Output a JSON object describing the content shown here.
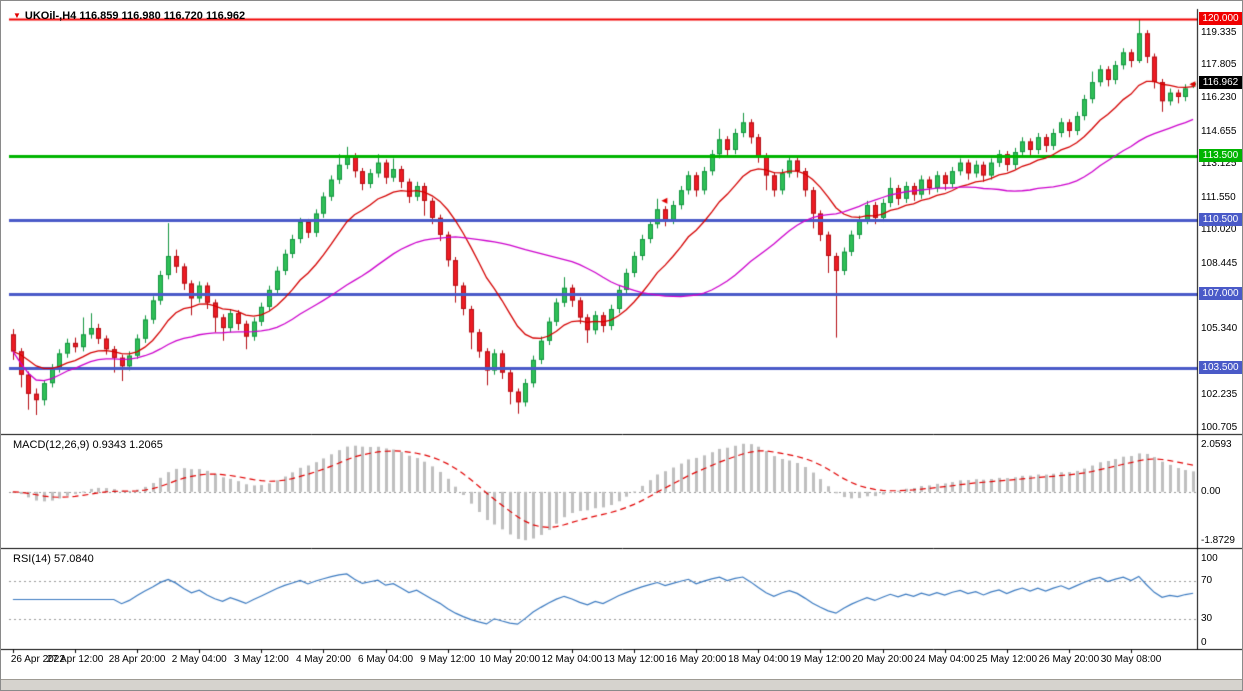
{
  "chart_data": {
    "type": "candlestick",
    "symbol": "UKOil-",
    "timeframe": "H4",
    "title": "UKOil-,H4 116.859 116.980 116.720 116.962",
    "ohlc_display": {
      "open": "116.859",
      "high": "116.980",
      "low": "116.720",
      "close": "116.962"
    },
    "current_price": {
      "label": "116.962",
      "value": 116.962,
      "badge_color": "#000000"
    },
    "price_range": [
      100.45,
      120.45
    ],
    "price_axis_labels": [
      "119.335",
      "117.805",
      "116.230",
      "114.655",
      "113.125",
      "111.550",
      "110.020",
      "108.445",
      "105.340",
      "102.235",
      "100.705"
    ],
    "levels": [
      {
        "label": "120.000",
        "value": 120.0,
        "color": "#f00000",
        "width": 2
      },
      {
        "label": "113.500",
        "value": 113.5,
        "color": "#00b400",
        "width": 3
      },
      {
        "label": "110.500",
        "value": 110.5,
        "color": "#4a5ac8",
        "width": 3
      },
      {
        "label": "107.000",
        "value": 107.0,
        "color": "#4a5ac8",
        "width": 3
      },
      {
        "label": "103.500",
        "value": 103.5,
        "color": "#4a5ac8",
        "width": 3
      }
    ],
    "moving_averages": [
      {
        "name": "ma-fast",
        "method": "ema",
        "period": 13,
        "color": "#d40000"
      },
      {
        "name": "ma-slow",
        "method": "sma",
        "period": 34,
        "color": "#cc00cc"
      }
    ],
    "arrows": [
      {
        "index": 83,
        "price": 111.4
      },
      {
        "index": 151,
        "price": 116.9
      }
    ],
    "arrow_color": "#e00000",
    "colors": {
      "bull_fill": "#2fbf57",
      "bull_border": "#149641",
      "bear_fill": "#ed1c24",
      "bear_border": "#b40e14",
      "background": "#ffffff",
      "separator": "#000000"
    },
    "time_labels": [
      "26 Apr 2022",
      "27 Apr 12:00",
      "28 Apr 20:00",
      "2 May 04:00",
      "3 May 12:00",
      "4 May 20:00",
      "6 May 04:00",
      "9 May 12:00",
      "10 May 20:00",
      "12 May 04:00",
      "13 May 12:00",
      "16 May 20:00",
      "18 May 04:00",
      "19 May 12:00",
      "20 May 20:00",
      "24 May 04:00",
      "25 May 12:00",
      "26 May 20:00",
      "30 May 08:00"
    ],
    "indicators": [
      {
        "id": "macd",
        "name": "MACD",
        "params": [
          12,
          26,
          9
        ],
        "label": "MACD(12,26,9) 0.9343 1.2065",
        "display_values": [
          "0.9343",
          "1.2065"
        ],
        "axis_labels": [
          {
            "text": "2.0593",
            "pos": "top"
          },
          {
            "text": "0.00",
            "pos": "zero"
          },
          {
            "text": "-1.8729",
            "pos": "bottom"
          }
        ],
        "colors": {
          "histogram": "#bfbfbf",
          "signal": "#e00000"
        }
      },
      {
        "id": "rsi",
        "name": "RSI",
        "period": 14,
        "label": "RSI(14) 57.0840",
        "display_value": "57.0840",
        "axis_labels": [
          {
            "text": "100",
            "value": 100
          },
          {
            "text": "70",
            "value": 70
          },
          {
            "text": "30",
            "value": 30
          },
          {
            "text": "0",
            "value": 0
          }
        ],
        "levels": [
          70,
          30
        ],
        "colors": {
          "line": "#3b7ac0"
        }
      }
    ],
    "candles": [
      [
        105.1,
        105.35,
        103.9,
        104.3
      ],
      [
        104.3,
        104.45,
        102.6,
        103.2
      ],
      [
        103.2,
        103.35,
        101.55,
        102.3
      ],
      [
        102.3,
        102.55,
        101.3,
        102.0
      ],
      [
        102.0,
        102.95,
        101.75,
        102.8
      ],
      [
        102.8,
        103.7,
        102.6,
        103.5
      ],
      [
        103.5,
        104.4,
        103.3,
        104.2
      ],
      [
        104.2,
        104.9,
        104.0,
        104.7
      ],
      [
        104.7,
        104.95,
        104.25,
        104.5
      ],
      [
        104.5,
        105.9,
        104.3,
        105.1
      ],
      [
        105.1,
        106.1,
        104.9,
        105.4
      ],
      [
        105.4,
        105.6,
        104.65,
        104.9
      ],
      [
        104.9,
        105.05,
        104.15,
        104.4
      ],
      [
        104.4,
        104.55,
        103.3,
        104.0
      ],
      [
        104.0,
        104.15,
        102.9,
        103.6
      ],
      [
        103.6,
        104.3,
        103.4,
        104.1
      ],
      [
        104.1,
        105.1,
        103.95,
        104.9
      ],
      [
        104.9,
        106.0,
        104.7,
        105.8
      ],
      [
        105.8,
        106.9,
        105.6,
        106.7
      ],
      [
        106.7,
        108.1,
        106.5,
        107.9
      ],
      [
        107.9,
        110.35,
        107.7,
        108.8
      ],
      [
        108.8,
        109.1,
        108.0,
        108.3
      ],
      [
        108.3,
        108.45,
        107.2,
        107.5
      ],
      [
        107.5,
        107.65,
        106.0,
        106.8
      ],
      [
        106.8,
        107.6,
        106.6,
        107.4
      ],
      [
        107.4,
        107.55,
        106.3,
        106.6
      ],
      [
        106.6,
        106.75,
        105.2,
        105.9
      ],
      [
        105.9,
        106.05,
        104.8,
        105.4
      ],
      [
        105.4,
        106.3,
        105.2,
        106.1
      ],
      [
        106.1,
        106.25,
        105.3,
        105.6
      ],
      [
        105.6,
        105.75,
        104.4,
        105.0
      ],
      [
        105.0,
        105.9,
        104.8,
        105.7
      ],
      [
        105.7,
        106.6,
        105.5,
        106.4
      ],
      [
        106.4,
        107.4,
        106.2,
        107.2
      ],
      [
        107.2,
        108.3,
        107.0,
        108.1
      ],
      [
        108.1,
        109.1,
        107.9,
        108.9
      ],
      [
        108.9,
        109.8,
        108.7,
        109.6
      ],
      [
        109.6,
        110.6,
        109.4,
        110.4
      ],
      [
        110.4,
        110.55,
        109.65,
        109.9
      ],
      [
        109.9,
        111.0,
        109.7,
        110.8
      ],
      [
        110.8,
        111.8,
        110.6,
        111.6
      ],
      [
        111.6,
        112.6,
        111.4,
        112.4
      ],
      [
        112.4,
        113.6,
        112.2,
        113.1
      ],
      [
        113.1,
        113.95,
        112.9,
        113.5
      ],
      [
        113.5,
        113.65,
        112.5,
        112.8
      ],
      [
        112.8,
        112.95,
        111.9,
        112.2
      ],
      [
        112.2,
        112.9,
        112.0,
        112.7
      ],
      [
        112.7,
        113.6,
        112.5,
        113.2
      ],
      [
        113.2,
        113.35,
        112.2,
        112.5
      ],
      [
        112.5,
        113.4,
        112.3,
        112.9
      ],
      [
        112.9,
        113.05,
        112.0,
        112.3
      ],
      [
        112.3,
        112.45,
        111.3,
        111.6
      ],
      [
        111.6,
        112.3,
        111.4,
        112.1
      ],
      [
        112.1,
        112.25,
        110.7,
        111.4
      ],
      [
        111.4,
        111.55,
        110.3,
        110.6
      ],
      [
        110.6,
        110.75,
        109.5,
        109.8
      ],
      [
        109.8,
        109.95,
        108.3,
        108.6
      ],
      [
        108.6,
        108.75,
        106.6,
        107.4
      ],
      [
        107.4,
        107.55,
        106.0,
        106.3
      ],
      [
        106.3,
        106.45,
        104.4,
        105.2
      ],
      [
        105.2,
        105.35,
        104.0,
        104.3
      ],
      [
        104.3,
        104.45,
        102.7,
        103.4
      ],
      [
        103.4,
        104.4,
        103.2,
        104.2
      ],
      [
        104.2,
        104.35,
        103.0,
        103.3
      ],
      [
        103.3,
        103.45,
        101.8,
        102.4
      ],
      [
        102.4,
        102.55,
        101.36,
        101.9
      ],
      [
        101.9,
        103.0,
        101.7,
        102.8
      ],
      [
        102.8,
        104.1,
        102.6,
        103.9
      ],
      [
        103.9,
        105.0,
        103.7,
        104.8
      ],
      [
        104.8,
        105.9,
        104.6,
        105.7
      ],
      [
        105.7,
        106.8,
        105.5,
        106.6
      ],
      [
        106.6,
        107.8,
        106.4,
        107.3
      ],
      [
        107.3,
        107.45,
        106.4,
        106.7
      ],
      [
        106.7,
        106.85,
        105.6,
        105.9
      ],
      [
        105.9,
        106.05,
        104.7,
        105.3
      ],
      [
        105.3,
        106.2,
        105.1,
        106.0
      ],
      [
        106.0,
        106.15,
        105.2,
        105.5
      ],
      [
        105.5,
        106.5,
        105.3,
        106.3
      ],
      [
        106.3,
        107.4,
        106.1,
        107.2
      ],
      [
        107.2,
        108.2,
        107.0,
        108.0
      ],
      [
        108.0,
        109.0,
        107.8,
        108.8
      ],
      [
        108.8,
        109.8,
        108.6,
        109.6
      ],
      [
        109.6,
        110.5,
        109.4,
        110.3
      ],
      [
        110.3,
        111.5,
        110.1,
        111.0
      ],
      [
        111.0,
        111.15,
        110.2,
        110.5
      ],
      [
        110.5,
        111.4,
        110.3,
        111.2
      ],
      [
        111.2,
        112.1,
        111.0,
        111.9
      ],
      [
        111.9,
        112.8,
        111.7,
        112.6
      ],
      [
        112.6,
        112.75,
        111.6,
        111.9
      ],
      [
        111.9,
        113.0,
        111.7,
        112.8
      ],
      [
        112.8,
        113.8,
        112.6,
        113.6
      ],
      [
        113.6,
        114.8,
        113.4,
        114.3
      ],
      [
        114.3,
        114.45,
        113.5,
        113.8
      ],
      [
        113.8,
        114.8,
        113.6,
        114.6
      ],
      [
        114.6,
        115.55,
        114.4,
        115.1
      ],
      [
        115.1,
        115.25,
        114.1,
        114.4
      ],
      [
        114.4,
        114.55,
        113.2,
        113.5
      ],
      [
        113.5,
        113.65,
        111.9,
        112.6
      ],
      [
        112.6,
        112.75,
        111.6,
        111.9
      ],
      [
        111.9,
        112.9,
        111.7,
        112.7
      ],
      [
        112.7,
        113.5,
        112.5,
        113.3
      ],
      [
        113.3,
        113.45,
        112.5,
        112.8
      ],
      [
        112.8,
        112.95,
        111.6,
        111.9
      ],
      [
        111.9,
        112.05,
        110.1,
        110.8
      ],
      [
        110.8,
        110.95,
        109.5,
        109.8
      ],
      [
        109.8,
        109.95,
        108.0,
        108.8
      ],
      [
        108.8,
        108.95,
        104.95,
        108.1
      ],
      [
        108.1,
        109.2,
        107.9,
        109.0
      ],
      [
        109.0,
        110.0,
        108.8,
        109.8
      ],
      [
        109.8,
        110.7,
        109.6,
        110.5
      ],
      [
        110.5,
        111.4,
        110.3,
        111.2
      ],
      [
        111.2,
        111.35,
        110.3,
        110.6
      ],
      [
        110.6,
        111.5,
        110.4,
        111.3
      ],
      [
        111.3,
        112.5,
        111.1,
        112.0
      ],
      [
        112.0,
        112.15,
        111.2,
        111.5
      ],
      [
        111.5,
        112.3,
        111.3,
        112.1
      ],
      [
        112.1,
        112.25,
        111.4,
        111.7
      ],
      [
        111.7,
        112.6,
        111.5,
        112.4
      ],
      [
        112.4,
        112.55,
        111.7,
        112.0
      ],
      [
        112.0,
        112.8,
        111.8,
        112.6
      ],
      [
        112.6,
        112.75,
        111.9,
        112.2
      ],
      [
        112.2,
        113.0,
        112.0,
        112.8
      ],
      [
        112.8,
        113.4,
        112.6,
        113.2
      ],
      [
        113.2,
        113.35,
        112.4,
        112.7
      ],
      [
        112.7,
        113.3,
        112.5,
        113.1
      ],
      [
        113.1,
        113.25,
        112.3,
        112.6
      ],
      [
        112.6,
        113.4,
        112.4,
        113.2
      ],
      [
        113.2,
        113.8,
        113.0,
        113.6
      ],
      [
        113.6,
        113.75,
        112.8,
        113.1
      ],
      [
        113.1,
        113.9,
        112.9,
        113.7
      ],
      [
        113.7,
        114.4,
        113.5,
        114.2
      ],
      [
        114.2,
        114.35,
        113.5,
        113.8
      ],
      [
        113.8,
        114.6,
        113.6,
        114.4
      ],
      [
        114.4,
        114.55,
        113.7,
        114.0
      ],
      [
        114.0,
        114.8,
        113.8,
        114.6
      ],
      [
        114.6,
        115.3,
        114.4,
        115.1
      ],
      [
        115.1,
        115.25,
        114.4,
        114.7
      ],
      [
        114.7,
        115.6,
        114.5,
        115.4
      ],
      [
        115.4,
        116.4,
        115.2,
        116.2
      ],
      [
        116.2,
        117.5,
        116.0,
        117.0
      ],
      [
        117.0,
        117.8,
        116.8,
        117.6
      ],
      [
        117.6,
        117.75,
        116.8,
        117.1
      ],
      [
        117.1,
        118.0,
        116.9,
        117.8
      ],
      [
        117.8,
        118.6,
        117.6,
        118.4
      ],
      [
        118.4,
        118.55,
        117.7,
        118.0
      ],
      [
        118.0,
        119.95,
        117.9,
        119.3
      ],
      [
        119.3,
        119.45,
        117.9,
        118.2
      ],
      [
        118.2,
        118.35,
        116.7,
        117.0
      ],
      [
        117.0,
        117.15,
        115.6,
        116.1
      ],
      [
        116.1,
        116.7,
        115.9,
        116.5
      ],
      [
        116.5,
        116.65,
        116.0,
        116.3
      ],
      [
        116.3,
        116.9,
        116.1,
        116.7
      ],
      [
        116.859,
        116.98,
        116.72,
        116.962
      ]
    ]
  }
}
